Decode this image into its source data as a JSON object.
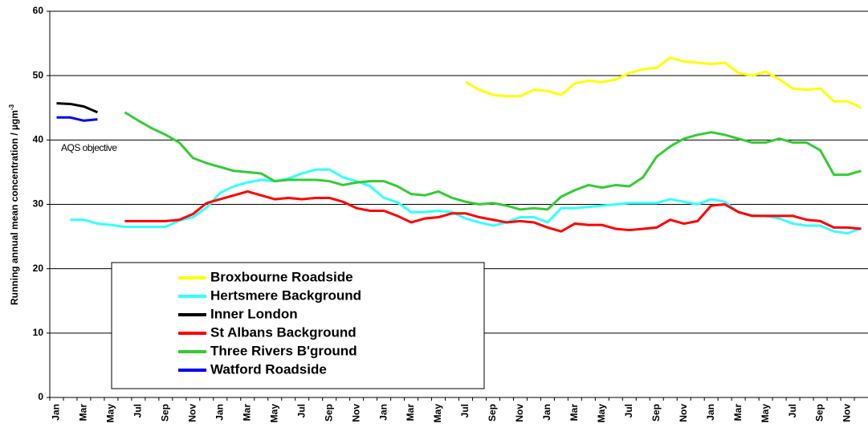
{
  "chart_data": {
    "type": "line",
    "y_label": "Running annual mean concentration /  µgm",
    "y_label_sup": "-3",
    "annotation": "AQS objective",
    "categories": [
      "Jan",
      null,
      "Mar",
      null,
      "May",
      null,
      "Jul",
      null,
      "Sep",
      null,
      "Nov",
      null,
      "Jan",
      null,
      "Mar",
      null,
      "May",
      null,
      "Jul",
      null,
      "Sep",
      null,
      "Nov",
      null,
      "Jan",
      null,
      "Mar",
      null,
      "May",
      null,
      "Jul",
      null,
      "Sep",
      null,
      "Nov",
      null,
      "Jan",
      null,
      "Mar",
      null,
      "May",
      null,
      "Jul",
      null,
      "Sep",
      null,
      "Nov",
      null,
      "Jan",
      null,
      "Mar",
      null,
      "May",
      null,
      "Jul",
      null,
      "Sep",
      null,
      "Nov",
      null
    ],
    "ylim": [
      0,
      60
    ],
    "yticks": [
      0,
      10,
      20,
      30,
      40,
      50,
      60
    ],
    "grid": true,
    "series": [
      {
        "name": "Broxbourne Roadside",
        "color": "#ffff00",
        "values": [
          null,
          null,
          null,
          null,
          null,
          null,
          null,
          null,
          null,
          null,
          null,
          null,
          null,
          null,
          null,
          null,
          null,
          null,
          null,
          null,
          null,
          null,
          null,
          null,
          null,
          null,
          null,
          null,
          null,
          null,
          49.0,
          47.8,
          47.0,
          46.8,
          46.8,
          47.8,
          47.6,
          47.0,
          48.8,
          49.2,
          49.0,
          49.4,
          50.4,
          51.0,
          51.2,
          52.8,
          52.2,
          52.0,
          51.8,
          52.0,
          50.4,
          50.0,
          50.6,
          49.4,
          48.0,
          47.8,
          48.0,
          46.0,
          46.0,
          45.0
        ]
      },
      {
        "name": "Hertsmere Background",
        "color": "#33ffff",
        "values": [
          null,
          27.6,
          27.6,
          27.0,
          26.8,
          26.5,
          26.5,
          26.5,
          26.5,
          27.5,
          28.0,
          29.5,
          31.8,
          32.8,
          33.4,
          33.8,
          33.6,
          34.0,
          34.8,
          35.4,
          35.4,
          34.2,
          33.6,
          32.8,
          31.0,
          30.3,
          28.8,
          28.8,
          29.0,
          28.8,
          27.8,
          27.2,
          26.7,
          27.2,
          28.0,
          28.0,
          27.2,
          29.4,
          29.4,
          29.6,
          29.8,
          30.0,
          30.2,
          30.2,
          30.2,
          30.8,
          30.4,
          30.0,
          30.8,
          30.4,
          28.8,
          28.3,
          28.2,
          27.8,
          27.0,
          26.7,
          26.7,
          25.8,
          25.5,
          26.3
        ]
      },
      {
        "name": "Inner London",
        "color": "#000000",
        "values": [
          45.7,
          45.6,
          45.2,
          44.3,
          null,
          null,
          null,
          null,
          null,
          null,
          null,
          null,
          null,
          null,
          null,
          null,
          null,
          null,
          null,
          null,
          null,
          null,
          null,
          null,
          null,
          null,
          null,
          null,
          null,
          null,
          null,
          null,
          null,
          null,
          null,
          null,
          null,
          null,
          null,
          null,
          null,
          null,
          null,
          null,
          null,
          null,
          null,
          null,
          null,
          null,
          null,
          null,
          null,
          null,
          null,
          null,
          null,
          null,
          null,
          null
        ]
      },
      {
        "name": "St Albans Background",
        "color": "#ff0000",
        "values": [
          null,
          null,
          null,
          null,
          null,
          27.4,
          27.4,
          27.4,
          27.4,
          27.6,
          28.5,
          30.2,
          30.8,
          31.4,
          32.0,
          31.4,
          30.8,
          31.0,
          30.8,
          31.0,
          31.0,
          30.4,
          29.4,
          29.0,
          29.0,
          28.2,
          27.2,
          27.8,
          28.0,
          28.6,
          28.6,
          28.0,
          27.6,
          27.2,
          27.4,
          27.2,
          26.4,
          25.8,
          27.0,
          26.8,
          26.8,
          26.2,
          26.0,
          26.2,
          26.4,
          27.6,
          27.0,
          27.4,
          29.8,
          30.0,
          28.8,
          28.2,
          28.2,
          28.2,
          28.2,
          27.6,
          27.4,
          26.4,
          26.4,
          26.2
        ]
      },
      {
        "name": "Three Rivers B'ground",
        "color": "#33cc33",
        "values": [
          null,
          null,
          null,
          null,
          null,
          44.3,
          43.0,
          41.8,
          40.8,
          39.6,
          37.2,
          36.4,
          35.8,
          35.2,
          35.0,
          34.8,
          33.6,
          33.8,
          33.8,
          33.8,
          33.6,
          33.0,
          33.4,
          33.6,
          33.6,
          32.8,
          31.6,
          31.4,
          32.0,
          31.0,
          30.4,
          30.0,
          30.2,
          29.8,
          29.2,
          29.4,
          29.2,
          31.2,
          32.2,
          33.0,
          32.6,
          33.0,
          32.8,
          34.2,
          37.4,
          39.0,
          40.2,
          40.8,
          41.2,
          40.8,
          40.2,
          39.6,
          39.6,
          40.2,
          39.6,
          39.6,
          38.4,
          34.6,
          34.6,
          35.2
        ]
      },
      {
        "name": "Watford Roadside",
        "color": "#0000ff",
        "values": [
          43.5,
          43.5,
          43.0,
          43.2,
          null,
          null,
          null,
          null,
          null,
          null,
          null,
          null,
          null,
          null,
          null,
          null,
          null,
          null,
          null,
          null,
          null,
          null,
          null,
          null,
          null,
          null,
          null,
          null,
          null,
          null,
          null,
          null,
          null,
          null,
          null,
          null,
          null,
          null,
          null,
          null,
          null,
          null,
          null,
          null,
          null,
          null,
          null,
          null,
          null,
          null,
          null,
          null,
          null,
          null,
          null,
          null,
          null,
          null,
          null,
          null
        ]
      }
    ]
  }
}
